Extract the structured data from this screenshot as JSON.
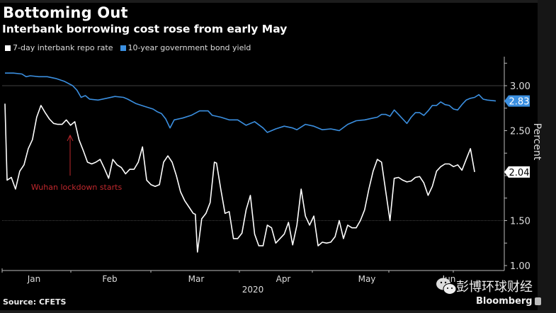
{
  "title": "Bottoming Out",
  "subtitle": "Interbank borrowing cost rose from early May",
  "source": "Source: CFETS",
  "watermark": {
    "chinese": "彭博环球财经",
    "brand": "Bloomberg",
    "icon": "wechat-icon"
  },
  "chart_data": {
    "type": "line",
    "title": "Bottoming Out",
    "subtitle": "Interbank borrowing cost rose from early May",
    "xlabel": "2020",
    "ylabel": "Percent",
    "ylim": [
      1.0,
      3.3
    ],
    "yticks": [
      "3.00",
      "2.50",
      "1.50",
      "1.00"
    ],
    "ytick_values": [
      3.0,
      2.5,
      1.5,
      1.0
    ],
    "xticks": [
      "Jan",
      "Feb",
      "Mar",
      "Apr",
      "May",
      "Jun"
    ],
    "xtick_days": [
      0,
      31,
      60,
      91,
      121,
      152
    ],
    "legend_position": "top-left",
    "grid": "horizontal at 3.00 and 1.50",
    "annotation": {
      "text": "Wuhan lockdown starts",
      "day": 23,
      "value": 2.55,
      "color": "#c0282d"
    },
    "series": [
      {
        "name": "7-day interbank repo rate",
        "color": "#ffffff",
        "last_value_label": "2.04",
        "points": [
          [
            0,
            2.8
          ],
          [
            1,
            1.95
          ],
          [
            3,
            1.98
          ],
          [
            5,
            1.85
          ],
          [
            7,
            2.05
          ],
          [
            9,
            2.12
          ],
          [
            11,
            2.3
          ],
          [
            13,
            2.4
          ],
          [
            15,
            2.65
          ],
          [
            17,
            2.78
          ],
          [
            19,
            2.7
          ],
          [
            21,
            2.63
          ],
          [
            23,
            2.58
          ],
          [
            25,
            2.57
          ],
          [
            27,
            2.57
          ],
          [
            29,
            2.62
          ],
          [
            31,
            2.56
          ],
          [
            33,
            2.6
          ],
          [
            35,
            2.4
          ],
          [
            37,
            2.28
          ],
          [
            39,
            2.15
          ],
          [
            41,
            2.13
          ],
          [
            43,
            2.15
          ],
          [
            45,
            2.18
          ],
          [
            47,
            2.08
          ],
          [
            49,
            1.97
          ],
          [
            51,
            2.18
          ],
          [
            53,
            2.12
          ],
          [
            55,
            2.09
          ],
          [
            57,
            2.02
          ],
          [
            59,
            2.07
          ],
          [
            61,
            2.07
          ],
          [
            63,
            2.15
          ],
          [
            65,
            2.32
          ],
          [
            67,
            1.95
          ],
          [
            69,
            1.9
          ],
          [
            71,
            1.88
          ],
          [
            73,
            1.9
          ],
          [
            75,
            2.15
          ],
          [
            77,
            2.22
          ],
          [
            79,
            2.15
          ],
          [
            81,
            2.0
          ],
          [
            83,
            1.82
          ],
          [
            85,
            1.72
          ],
          [
            87,
            1.65
          ],
          [
            89,
            1.58
          ],
          [
            90,
            1.57
          ],
          [
            91,
            1.15
          ],
          [
            93,
            1.52
          ],
          [
            95,
            1.58
          ],
          [
            97,
            1.7
          ],
          [
            99,
            2.15
          ],
          [
            100,
            2.14
          ],
          [
            102,
            1.85
          ],
          [
            104,
            1.58
          ],
          [
            106,
            1.6
          ],
          [
            108,
            1.3
          ],
          [
            110,
            1.3
          ],
          [
            112,
            1.36
          ],
          [
            114,
            1.62
          ],
          [
            116,
            1.78
          ],
          [
            118,
            1.35
          ],
          [
            120,
            1.22
          ],
          [
            122,
            1.22
          ],
          [
            124,
            1.45
          ],
          [
            126,
            1.42
          ],
          [
            128,
            1.25
          ],
          [
            130,
            1.3
          ],
          [
            132,
            1.35
          ],
          [
            134,
            1.48
          ],
          [
            136,
            1.23
          ],
          [
            138,
            1.45
          ],
          [
            140,
            1.85
          ],
          [
            142,
            1.55
          ],
          [
            144,
            1.45
          ],
          [
            146,
            1.55
          ],
          [
            148,
            1.22
          ],
          [
            150,
            1.26
          ],
          [
            152,
            1.25
          ],
          [
            154,
            1.26
          ],
          [
            156,
            1.32
          ],
          [
            158,
            1.5
          ],
          [
            160,
            1.3
          ],
          [
            162,
            1.45
          ],
          [
            164,
            1.42
          ],
          [
            166,
            1.42
          ],
          [
            168,
            1.5
          ],
          [
            170,
            1.62
          ],
          [
            172,
            1.85
          ],
          [
            174,
            2.05
          ],
          [
            176,
            2.18
          ],
          [
            178,
            2.15
          ],
          [
            180,
            1.82
          ],
          [
            182,
            1.5
          ],
          [
            184,
            1.97
          ],
          [
            186,
            1.98
          ],
          [
            188,
            1.95
          ],
          [
            190,
            1.93
          ],
          [
            192,
            1.94
          ],
          [
            194,
            1.98
          ],
          [
            196,
            1.99
          ],
          [
            198,
            1.92
          ],
          [
            200,
            1.78
          ],
          [
            202,
            1.88
          ],
          [
            204,
            2.05
          ],
          [
            206,
            2.1
          ],
          [
            208,
            2.13
          ],
          [
            210,
            2.13
          ],
          [
            212,
            2.1
          ],
          [
            214,
            2.12
          ],
          [
            216,
            2.06
          ],
          [
            218,
            2.18
          ],
          [
            220,
            2.3
          ],
          [
            222,
            2.04
          ]
        ]
      },
      {
        "name": "10-year government bond yield",
        "color": "#3b8fe0",
        "last_value_label": "2.83",
        "points": [
          [
            0,
            3.14
          ],
          [
            4,
            3.14
          ],
          [
            8,
            3.13
          ],
          [
            10,
            3.1
          ],
          [
            12,
            3.11
          ],
          [
            16,
            3.1
          ],
          [
            20,
            3.1
          ],
          [
            24,
            3.08
          ],
          [
            28,
            3.05
          ],
          [
            32,
            3.0
          ],
          [
            34,
            2.95
          ],
          [
            36,
            2.87
          ],
          [
            38,
            2.89
          ],
          [
            40,
            2.85
          ],
          [
            44,
            2.84
          ],
          [
            48,
            2.86
          ],
          [
            52,
            2.88
          ],
          [
            56,
            2.87
          ],
          [
            58,
            2.85
          ],
          [
            62,
            2.8
          ],
          [
            66,
            2.77
          ],
          [
            70,
            2.74
          ],
          [
            72,
            2.71
          ],
          [
            74,
            2.69
          ],
          [
            76,
            2.63
          ],
          [
            78,
            2.53
          ],
          [
            80,
            2.62
          ],
          [
            84,
            2.64
          ],
          [
            88,
            2.67
          ],
          [
            92,
            2.72
          ],
          [
            96,
            2.72
          ],
          [
            98,
            2.67
          ],
          [
            102,
            2.65
          ],
          [
            106,
            2.62
          ],
          [
            110,
            2.62
          ],
          [
            114,
            2.56
          ],
          [
            118,
            2.6
          ],
          [
            122,
            2.53
          ],
          [
            124,
            2.48
          ],
          [
            128,
            2.52
          ],
          [
            132,
            2.55
          ],
          [
            136,
            2.53
          ],
          [
            138,
            2.51
          ],
          [
            142,
            2.57
          ],
          [
            146,
            2.55
          ],
          [
            150,
            2.51
          ],
          [
            154,
            2.52
          ],
          [
            156,
            2.51
          ],
          [
            158,
            2.5
          ],
          [
            162,
            2.57
          ],
          [
            166,
            2.61
          ],
          [
            170,
            2.62
          ],
          [
            174,
            2.64
          ],
          [
            176,
            2.65
          ],
          [
            178,
            2.68
          ],
          [
            180,
            2.68
          ],
          [
            182,
            2.66
          ],
          [
            184,
            2.73
          ],
          [
            186,
            2.68
          ],
          [
            188,
            2.63
          ],
          [
            190,
            2.58
          ],
          [
            192,
            2.65
          ],
          [
            194,
            2.7
          ],
          [
            196,
            2.7
          ],
          [
            198,
            2.67
          ],
          [
            200,
            2.72
          ],
          [
            202,
            2.78
          ],
          [
            204,
            2.78
          ],
          [
            206,
            2.82
          ],
          [
            208,
            2.79
          ],
          [
            210,
            2.78
          ],
          [
            212,
            2.74
          ],
          [
            214,
            2.73
          ],
          [
            216,
            2.79
          ],
          [
            218,
            2.84
          ],
          [
            220,
            2.86
          ],
          [
            222,
            2.87
          ],
          [
            224,
            2.9
          ],
          [
            226,
            2.85
          ],
          [
            228,
            2.84
          ],
          [
            232,
            2.83
          ]
        ]
      }
    ]
  }
}
